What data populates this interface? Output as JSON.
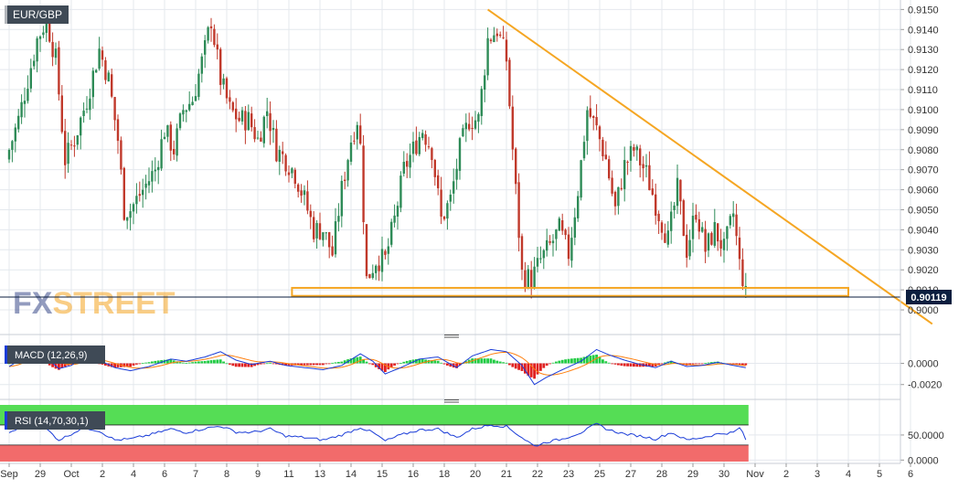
{
  "colors": {
    "background": "#ffffff",
    "grid": "#e4e8ee",
    "up_candle": "#2e8b57",
    "down_candle": "#c0392b",
    "trendline": "#f5a623",
    "price_tag_bg": "#0b1e3f",
    "price_tag_text": "#ffffff",
    "macd_line": "#1a3cd8",
    "signal_line": "#ff7f0e",
    "hist_pos": "#22cc44",
    "hist_neg": "#e02020",
    "rsi_line": "#1a3cd8",
    "rsi_overbought": "#55dd55",
    "rsi_oversold": "#f26b6b",
    "label_bg": "#3f4a56",
    "label_text": "#ffffff",
    "watermark": "#3a4a8a",
    "watermark_accent": "#f5a623"
  },
  "symbol_label": "EUR/GBP",
  "watermark": {
    "part1": "FX",
    "part2": "STREET"
  },
  "price_tag": "0.90119",
  "chart_data": [
    {
      "type": "candlestick",
      "symbol": "EUR/GBP",
      "ylim": [
        0.8995,
        0.9152
      ],
      "y_ticks": [
        "0.9000",
        "0.9010",
        "0.9020",
        "0.9030",
        "0.9040",
        "0.9050",
        "0.9060",
        "0.9070",
        "0.9080",
        "0.9090",
        "0.9100",
        "0.9110",
        "0.9120",
        "0.9130",
        "0.9140",
        "0.9150"
      ],
      "x_labels": [
        {
          "label": "Sep",
          "day": 0
        },
        {
          "label": "29",
          "day": 1
        },
        {
          "label": "Oct",
          "day": 2
        },
        {
          "label": "2",
          "day": 3
        },
        {
          "label": "4",
          "day": 4
        },
        {
          "label": "6",
          "day": 5
        },
        {
          "label": "7",
          "day": 6
        },
        {
          "label": "8",
          "day": 7
        },
        {
          "label": "9",
          "day": 8
        },
        {
          "label": "11",
          "day": 9
        },
        {
          "label": "13",
          "day": 10
        },
        {
          "label": "14",
          "day": 11
        },
        {
          "label": "15",
          "day": 12
        },
        {
          "label": "16",
          "day": 13
        },
        {
          "label": "18",
          "day": 14
        },
        {
          "label": "20",
          "day": 15
        },
        {
          "label": "21",
          "day": 16
        },
        {
          "label": "22",
          "day": 17
        },
        {
          "label": "23",
          "day": 18
        },
        {
          "label": "25",
          "day": 19
        },
        {
          "label": "27",
          "day": 20
        },
        {
          "label": "28",
          "day": 21
        },
        {
          "label": "29",
          "day": 22
        },
        {
          "label": "30",
          "day": 23
        },
        {
          "label": "Nov",
          "day": 24
        },
        {
          "label": "2",
          "day": 25
        },
        {
          "label": "3",
          "day": 26
        },
        {
          "label": "4",
          "day": 27
        },
        {
          "label": "5",
          "day": 28
        },
        {
          "label": "6",
          "day": 29
        }
      ],
      "anchors": [
        [
          0.0,
          0.9075
        ],
        [
          0.4,
          0.9095
        ],
        [
          0.7,
          0.9115
        ],
        [
          1.0,
          0.9135
        ],
        [
          1.3,
          0.9145
        ],
        [
          1.6,
          0.9125
        ],
        [
          1.9,
          0.9075
        ],
        [
          2.2,
          0.9085
        ],
        [
          2.6,
          0.9105
        ],
        [
          3.0,
          0.913
        ],
        [
          3.3,
          0.9115
        ],
        [
          3.6,
          0.9085
        ],
        [
          3.8,
          0.905
        ],
        [
          4.0,
          0.905
        ],
        [
          4.4,
          0.906
        ],
        [
          4.8,
          0.907
        ],
        [
          5.1,
          0.909
        ],
        [
          5.4,
          0.908
        ],
        [
          5.7,
          0.91
        ],
        [
          6.0,
          0.9105
        ],
        [
          6.4,
          0.913
        ],
        [
          6.6,
          0.9145
        ],
        [
          6.9,
          0.9115
        ],
        [
          7.2,
          0.91
        ],
        [
          7.5,
          0.9095
        ],
        [
          7.8,
          0.9095
        ],
        [
          8.1,
          0.9085
        ],
        [
          8.4,
          0.91
        ],
        [
          8.7,
          0.908
        ],
        [
          9.0,
          0.9075
        ],
        [
          9.3,
          0.9068
        ],
        [
          9.6,
          0.9055
        ],
        [
          9.9,
          0.904
        ],
        [
          10.2,
          0.904
        ],
        [
          10.5,
          0.9028
        ],
        [
          10.8,
          0.906
        ],
        [
          11.1,
          0.9085
        ],
        [
          11.35,
          0.9098
        ],
        [
          11.6,
          0.9015
        ],
        [
          11.9,
          0.9025
        ],
        [
          12.2,
          0.9025
        ],
        [
          12.5,
          0.9045
        ],
        [
          12.8,
          0.907
        ],
        [
          13.1,
          0.908
        ],
        [
          13.4,
          0.909
        ],
        [
          13.7,
          0.908
        ],
        [
          14.0,
          0.9045
        ],
        [
          14.3,
          0.9055
        ],
        [
          14.6,
          0.908
        ],
        [
          14.9,
          0.9095
        ],
        [
          15.2,
          0.9095
        ],
        [
          15.5,
          0.9135
        ],
        [
          15.8,
          0.914
        ],
        [
          16.1,
          0.9125
        ],
        [
          16.3,
          0.908
        ],
        [
          16.6,
          0.9018
        ],
        [
          16.9,
          0.9015
        ],
        [
          17.2,
          0.9025
        ],
        [
          17.5,
          0.9032
        ],
        [
          17.8,
          0.904
        ],
        [
          18.1,
          0.9028
        ],
        [
          18.4,
          0.906
        ],
        [
          18.7,
          0.91
        ],
        [
          19.0,
          0.909
        ],
        [
          19.3,
          0.9075
        ],
        [
          19.6,
          0.905
        ],
        [
          19.9,
          0.9072
        ],
        [
          20.2,
          0.908
        ],
        [
          20.6,
          0.9068
        ],
        [
          21.0,
          0.9048
        ],
        [
          21.3,
          0.9035
        ],
        [
          21.6,
          0.906
        ],
        [
          21.9,
          0.903
        ],
        [
          22.2,
          0.905
        ],
        [
          22.5,
          0.903
        ],
        [
          22.8,
          0.904
        ],
        [
          23.1,
          0.903
        ],
        [
          23.4,
          0.9048
        ],
        [
          23.7,
          0.901
        ]
      ],
      "trendline_points": [
        [
          15.4,
          0.915
        ],
        [
          29.7,
          0.8993
        ]
      ],
      "support_zone": [
        0.9007,
        0.9011
      ],
      "support_zone_days": [
        9.1,
        27.0
      ],
      "last_price": 0.90119
    },
    {
      "type": "line",
      "name": "MACD (12,26,9)",
      "series": [
        {
          "name": "MACD"
        },
        {
          "name": "Signal"
        },
        {
          "name": "Histogram"
        }
      ],
      "ylim": [
        -0.0028,
        0.0022
      ],
      "y_ticks": [
        "0.0000",
        "-0.0020"
      ],
      "anchors": [
        [
          0.0,
          -0.0003
        ],
        [
          0.6,
          0.0008
        ],
        [
          1.2,
          0.0005
        ],
        [
          1.6,
          -0.0005
        ],
        [
          2.0,
          -0.0002
        ],
        [
          2.4,
          0.0006
        ],
        [
          2.9,
          0.0003
        ],
        [
          3.4,
          -0.0004
        ],
        [
          3.9,
          -0.0007
        ],
        [
          4.5,
          -0.0003
        ],
        [
          5.2,
          0.0004
        ],
        [
          5.7,
          0.0002
        ],
        [
          6.3,
          0.0006
        ],
        [
          6.8,
          0.0011
        ],
        [
          7.3,
          0.0003
        ],
        [
          7.8,
          -0.0001
        ],
        [
          8.4,
          0.0002
        ],
        [
          8.9,
          -0.0002
        ],
        [
          9.5,
          -0.0004
        ],
        [
          10.1,
          -0.0006
        ],
        [
          10.7,
          -0.0002
        ],
        [
          11.3,
          0.0009
        ],
        [
          11.7,
          0.0002
        ],
        [
          12.1,
          -0.001
        ],
        [
          12.6,
          -0.0004
        ],
        [
          13.2,
          0.0004
        ],
        [
          13.8,
          0.0006
        ],
        [
          14.4,
          -0.0004
        ],
        [
          14.9,
          0.0007
        ],
        [
          15.5,
          0.0013
        ],
        [
          16.0,
          0.0011
        ],
        [
          16.5,
          -0.0002
        ],
        [
          16.9,
          -0.002
        ],
        [
          17.3,
          -0.0013
        ],
        [
          17.8,
          -0.0006
        ],
        [
          18.4,
          0.0002
        ],
        [
          18.9,
          0.0013
        ],
        [
          19.3,
          0.0008
        ],
        [
          19.8,
          0.0003
        ],
        [
          20.3,
          -0.0001
        ],
        [
          20.8,
          -0.0004
        ],
        [
          21.3,
          0.0002
        ],
        [
          21.8,
          -0.0003
        ],
        [
          22.3,
          -0.0002
        ],
        [
          22.8,
          0.0001
        ],
        [
          23.3,
          -0.0002
        ],
        [
          23.7,
          -0.0004
        ]
      ]
    },
    {
      "type": "line",
      "name": "RSI (14,70,30,1)",
      "series": [
        {
          "name": "RSI"
        }
      ],
      "ylim": [
        -3,
        110
      ],
      "y_ticks": [
        "50.0000",
        "0.0000"
      ],
      "overbought": 70,
      "oversold": 30,
      "anchors": [
        [
          0.0,
          55
        ],
        [
          0.6,
          70
        ],
        [
          1.2,
          62
        ],
        [
          1.6,
          40
        ],
        [
          2.0,
          52
        ],
        [
          2.4,
          65
        ],
        [
          2.9,
          58
        ],
        [
          3.4,
          40
        ],
        [
          3.9,
          42
        ],
        [
          4.5,
          50
        ],
        [
          5.2,
          62
        ],
        [
          5.7,
          55
        ],
        [
          6.3,
          63
        ],
        [
          6.8,
          68
        ],
        [
          7.3,
          56
        ],
        [
          7.8,
          55
        ],
        [
          8.4,
          62
        ],
        [
          8.9,
          48
        ],
        [
          9.5,
          45
        ],
        [
          10.1,
          40
        ],
        [
          10.7,
          50
        ],
        [
          11.3,
          65
        ],
        [
          11.7,
          55
        ],
        [
          12.1,
          38
        ],
        [
          12.6,
          50
        ],
        [
          13.2,
          60
        ],
        [
          13.8,
          62
        ],
        [
          14.4,
          45
        ],
        [
          14.9,
          62
        ],
        [
          15.5,
          70
        ],
        [
          16.0,
          67
        ],
        [
          16.5,
          45
        ],
        [
          16.9,
          28
        ],
        [
          17.3,
          36
        ],
        [
          17.8,
          42
        ],
        [
          18.4,
          55
        ],
        [
          18.9,
          72
        ],
        [
          19.3,
          60
        ],
        [
          19.8,
          52
        ],
        [
          20.3,
          48
        ],
        [
          20.8,
          42
        ],
        [
          21.3,
          55
        ],
        [
          21.8,
          40
        ],
        [
          22.3,
          45
        ],
        [
          22.8,
          52
        ],
        [
          23.3,
          55
        ],
        [
          23.55,
          66
        ],
        [
          23.7,
          38
        ]
      ]
    }
  ],
  "panels": {
    "macd_label": "MACD (12,26,9)",
    "rsi_label": "RSI (14,70,30,1)"
  }
}
